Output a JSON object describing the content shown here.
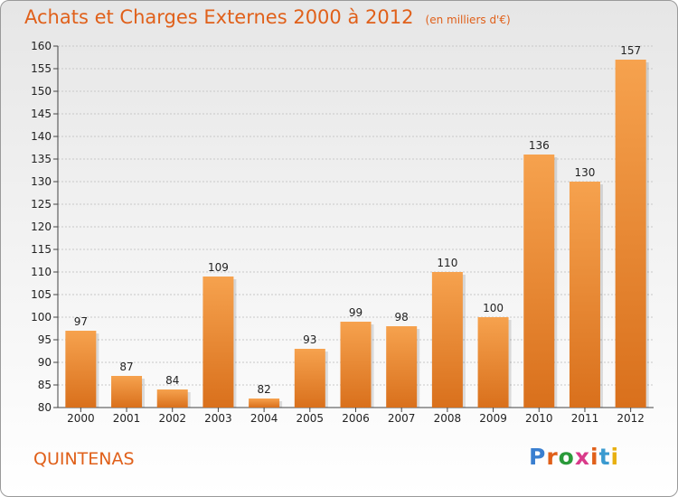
{
  "header": {
    "title": "Achats et Charges Externes 2000 à 2012",
    "subtitle": "(en milliers d'€)"
  },
  "footer": {
    "commune": "QUINTENAS",
    "logo_text": "Proxiti",
    "logo_colors": [
      "#3a7fd0",
      "#e0601a",
      "#2a9a3a",
      "#d93a8a",
      "#e0601a",
      "#3a9ad0",
      "#e8b010"
    ]
  },
  "colors": {
    "bar_light": "#f6a24e",
    "bar_dark": "#d9701c",
    "accent": "#e0601a"
  },
  "chart_data": {
    "type": "bar",
    "categories": [
      "2000",
      "2001",
      "2002",
      "2003",
      "2004",
      "2005",
      "2006",
      "2007",
      "2008",
      "2009",
      "2010",
      "2011",
      "2012"
    ],
    "values": [
      97,
      87,
      84,
      109,
      82,
      93,
      99,
      98,
      110,
      100,
      136,
      130,
      157
    ],
    "ylim": [
      80,
      160
    ],
    "yticks": [
      80,
      85,
      90,
      95,
      100,
      105,
      110,
      115,
      120,
      125,
      130,
      135,
      140,
      145,
      150,
      155,
      160
    ],
    "grid": true
  }
}
